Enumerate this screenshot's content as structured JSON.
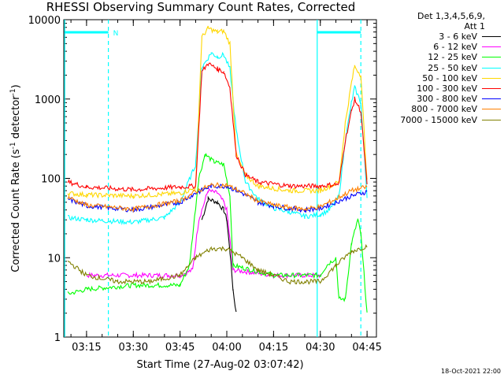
{
  "chart_data": {
    "type": "line",
    "title": "RHESSI Observing Summary Count Rates, Corrected",
    "xlabel": "Start Time (27-Aug-02 03:07:42)",
    "ylabel_main": "Corrected Count Rate (s",
    "ylabel_sup1": "-1",
    "ylabel_mid": " detector",
    "ylabel_sup2": "-1",
    "ylabel_end": ")",
    "y_scale": "log",
    "ylim": [
      1,
      10000
    ],
    "xlim": [
      "03:07:42",
      "04:48:00"
    ],
    "x_ticks": [
      "03:15",
      "03:30",
      "03:45",
      "04:00",
      "04:15",
      "04:30",
      "04:45"
    ],
    "y_ticks": [
      "1",
      "10",
      "100",
      "1000",
      "10000"
    ],
    "legend_header": [
      "Det 1,3,4,5,6,9,",
      "Att 1"
    ],
    "night_marker": "N",
    "footer": "18-Oct-2021 22:00",
    "series": [
      {
        "name": "3 - 6 keV",
        "color": "#000000",
        "points": [
          [
            "03:52",
            30
          ],
          [
            "03:54",
            55
          ],
          [
            "03:57",
            50
          ],
          [
            "03:59",
            40
          ],
          [
            "04:00",
            30
          ],
          [
            "04:01",
            12
          ],
          [
            "04:02",
            4
          ],
          [
            "04:03",
            2
          ]
        ]
      },
      {
        "name": "6 - 12 keV",
        "color": "#ff00ff",
        "points": [
          [
            "03:15",
            6
          ],
          [
            "03:30",
            6
          ],
          [
            "03:45",
            6
          ],
          [
            "03:49",
            7
          ],
          [
            "03:51",
            30
          ],
          [
            "03:54",
            70
          ],
          [
            "03:57",
            65
          ],
          [
            "03:59",
            50
          ],
          [
            "04:00",
            40
          ],
          [
            "04:02",
            7
          ],
          [
            "04:15",
            6
          ],
          [
            "04:30",
            6
          ]
        ]
      },
      {
        "name": "12 - 25 keV",
        "color": "#00ff00",
        "points": [
          [
            "03:09",
            3.5
          ],
          [
            "03:15",
            4
          ],
          [
            "03:30",
            4.5
          ],
          [
            "03:45",
            4.5
          ],
          [
            "03:48",
            8
          ],
          [
            "03:51",
            100
          ],
          [
            "03:53",
            200
          ],
          [
            "03:56",
            160
          ],
          [
            "03:59",
            150
          ],
          [
            "04:01",
            60
          ],
          [
            "04:02",
            8
          ],
          [
            "04:15",
            6
          ],
          [
            "04:30",
            6
          ],
          [
            "04:32",
            8
          ],
          [
            "04:35",
            10
          ],
          [
            "04:36",
            3
          ],
          [
            "04:38",
            3
          ],
          [
            "04:40",
            15
          ],
          [
            "04:42",
            30
          ],
          [
            "04:43",
            20
          ],
          [
            "04:45",
            2
          ]
        ]
      },
      {
        "name": "25 - 50 keV",
        "color": "#00ffff",
        "points": [
          [
            "03:09",
            32
          ],
          [
            "03:15",
            30
          ],
          [
            "03:30",
            28
          ],
          [
            "03:40",
            32
          ],
          [
            "03:45",
            50
          ],
          [
            "03:50",
            150
          ],
          [
            "03:52",
            2500
          ],
          [
            "03:55",
            3800
          ],
          [
            "03:57",
            3400
          ],
          [
            "03:59",
            3600
          ],
          [
            "04:01",
            2400
          ],
          [
            "04:03",
            400
          ],
          [
            "04:06",
            90
          ],
          [
            "04:10",
            55
          ],
          [
            "04:15",
            42
          ],
          [
            "04:20",
            38
          ],
          [
            "04:25",
            33
          ],
          [
            "04:30",
            35
          ],
          [
            "04:33",
            40
          ],
          [
            "04:36",
            60
          ],
          [
            "04:38",
            300
          ],
          [
            "04:40",
            900
          ],
          [
            "04:41",
            1400
          ],
          [
            "04:43",
            900
          ],
          [
            "04:45",
            60
          ]
        ]
      },
      {
        "name": "50 - 100 keV",
        "color": "#ffd700",
        "points": [
          [
            "03:09",
            65
          ],
          [
            "03:15",
            62
          ],
          [
            "03:30",
            60
          ],
          [
            "03:45",
            65
          ],
          [
            "03:50",
            75
          ],
          [
            "03:52",
            6000
          ],
          [
            "03:54",
            7800
          ],
          [
            "03:57",
            7000
          ],
          [
            "03:59",
            7200
          ],
          [
            "04:01",
            5000
          ],
          [
            "04:03",
            200
          ],
          [
            "04:06",
            110
          ],
          [
            "04:10",
            80
          ],
          [
            "04:15",
            75
          ],
          [
            "04:20",
            70
          ],
          [
            "04:30",
            70
          ],
          [
            "04:36",
            90
          ],
          [
            "04:38",
            500
          ],
          [
            "04:40",
            1600
          ],
          [
            "04:41",
            2600
          ],
          [
            "04:43",
            2000
          ],
          [
            "04:45",
            90
          ]
        ]
      },
      {
        "name": "100 - 300 keV",
        "color": "#ff0000",
        "points": [
          [
            "03:09",
            90
          ],
          [
            "03:15",
            78
          ],
          [
            "03:30",
            72
          ],
          [
            "03:45",
            78
          ],
          [
            "03:50",
            80
          ],
          [
            "03:52",
            2200
          ],
          [
            "03:54",
            2800
          ],
          [
            "03:57",
            2400
          ],
          [
            "03:59",
            2200
          ],
          [
            "04:01",
            1400
          ],
          [
            "04:03",
            200
          ],
          [
            "04:06",
            110
          ],
          [
            "04:10",
            90
          ],
          [
            "04:15",
            85
          ],
          [
            "04:20",
            80
          ],
          [
            "04:30",
            80
          ],
          [
            "04:36",
            85
          ],
          [
            "04:38",
            300
          ],
          [
            "04:40",
            700
          ],
          [
            "04:41",
            1000
          ],
          [
            "04:43",
            700
          ],
          [
            "04:45",
            80
          ]
        ]
      },
      {
        "name": "300 - 800 keV",
        "color": "#0000ff",
        "points": [
          [
            "03:09",
            55
          ],
          [
            "03:15",
            45
          ],
          [
            "03:30",
            40
          ],
          [
            "03:45",
            50
          ],
          [
            "03:50",
            65
          ],
          [
            "03:55",
            80
          ],
          [
            "04:00",
            80
          ],
          [
            "04:05",
            65
          ],
          [
            "04:10",
            50
          ],
          [
            "04:15",
            45
          ],
          [
            "04:20",
            42
          ],
          [
            "04:25",
            40
          ],
          [
            "04:30",
            42
          ],
          [
            "04:35",
            50
          ],
          [
            "04:40",
            60
          ],
          [
            "04:45",
            68
          ]
        ]
      },
      {
        "name": "800 - 7000 keV",
        "color": "#ff8000",
        "points": [
          [
            "03:09",
            58
          ],
          [
            "03:15",
            46
          ],
          [
            "03:30",
            41
          ],
          [
            "03:45",
            52
          ],
          [
            "03:50",
            68
          ],
          [
            "03:55",
            82
          ],
          [
            "04:00",
            82
          ],
          [
            "04:05",
            67
          ],
          [
            "04:10",
            52
          ],
          [
            "04:15",
            46
          ],
          [
            "04:20",
            43
          ],
          [
            "04:25",
            41
          ],
          [
            "04:30",
            44
          ],
          [
            "04:35",
            55
          ],
          [
            "04:40",
            70
          ],
          [
            "04:45",
            78
          ]
        ]
      },
      {
        "name": "7000 - 15000 keV",
        "color": "#808000",
        "points": [
          [
            "03:09",
            9
          ],
          [
            "03:15",
            6
          ],
          [
            "03:25",
            5
          ],
          [
            "03:35",
            5
          ],
          [
            "03:45",
            6
          ],
          [
            "03:50",
            10
          ],
          [
            "03:55",
            13
          ],
          [
            "04:00",
            13
          ],
          [
            "04:05",
            10
          ],
          [
            "04:10",
            7
          ],
          [
            "04:15",
            6
          ],
          [
            "04:20",
            5
          ],
          [
            "04:25",
            5
          ],
          [
            "04:30",
            5
          ],
          [
            "04:35",
            8
          ],
          [
            "04:40",
            12
          ],
          [
            "04:45",
            14
          ]
        ]
      }
    ],
    "vertical_markers": [
      {
        "time": "03:08",
        "style": "solid",
        "color": "#00ffff"
      },
      {
        "time": "03:22",
        "style": "dashed",
        "color": "#00ffff"
      },
      {
        "time": "04:29",
        "style": "solid",
        "color": "#00ffff"
      },
      {
        "time": "04:43",
        "style": "dashed",
        "color": "#00ffff"
      }
    ],
    "night_bars": [
      {
        "start": "03:08",
        "end": "03:22",
        "color": "#00ffff"
      },
      {
        "start": "04:29",
        "end": "04:43",
        "color": "#00ffff"
      }
    ]
  }
}
